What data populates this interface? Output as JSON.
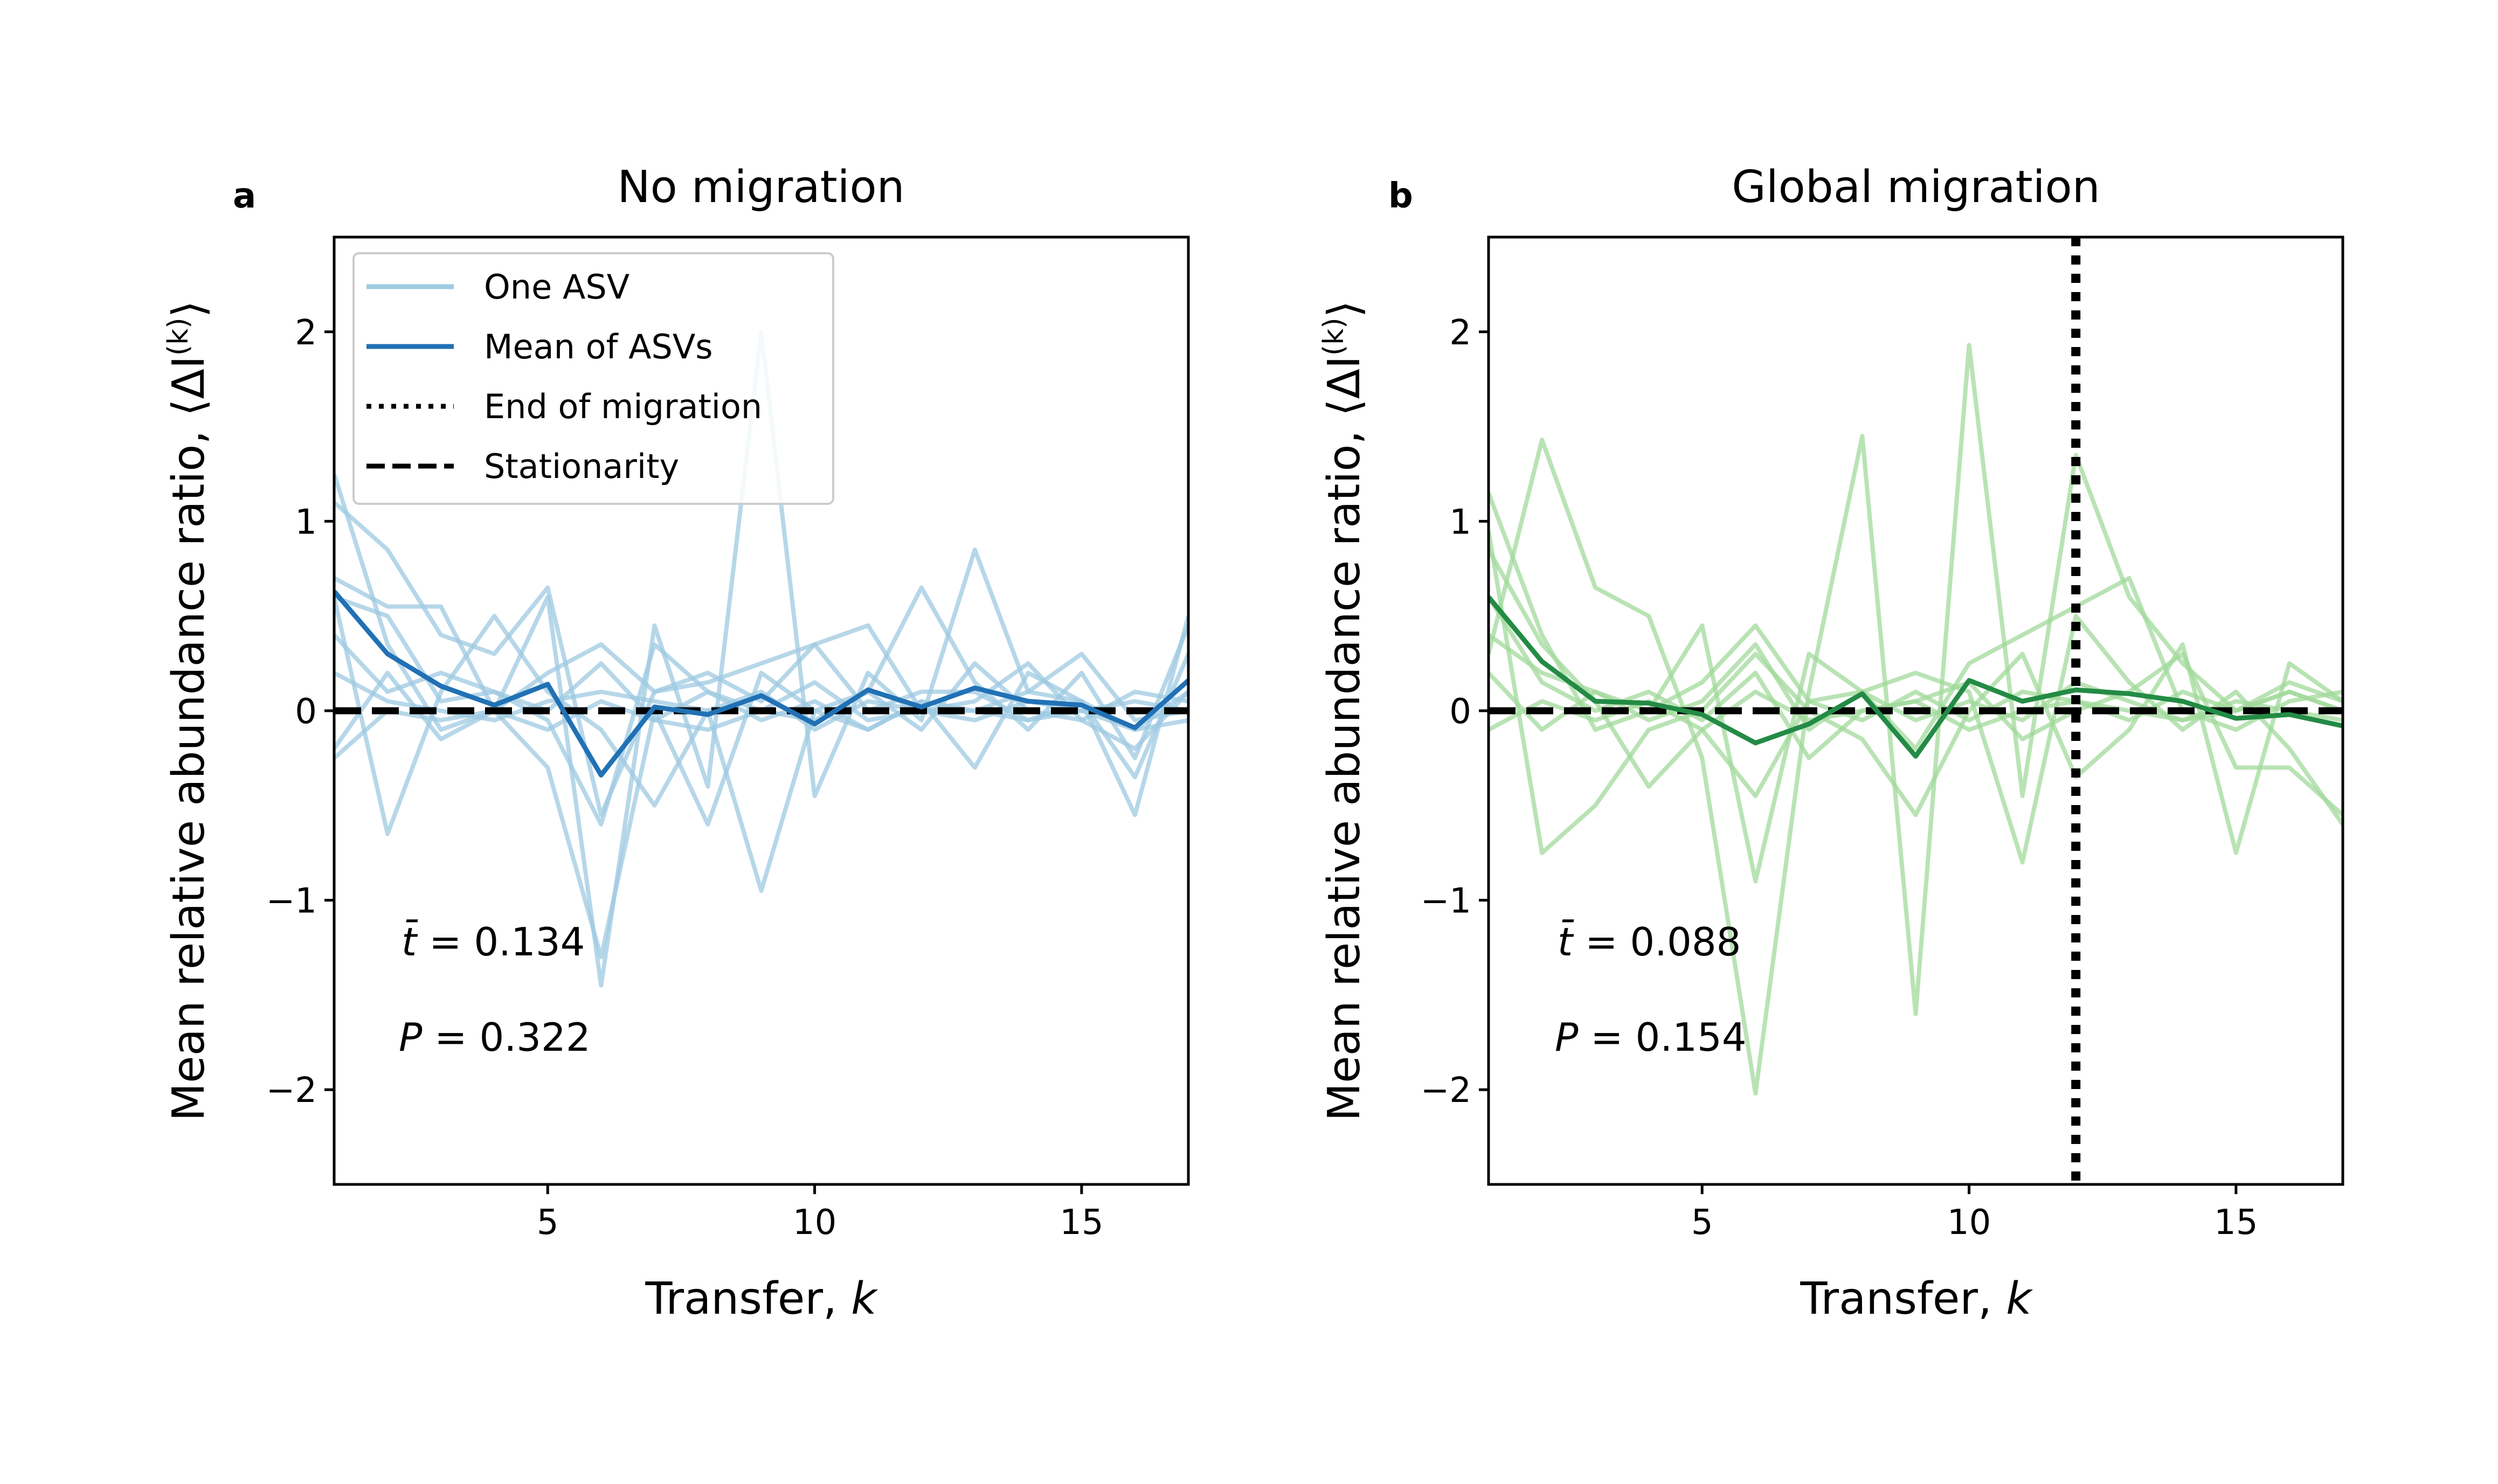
{
  "figure": {
    "panels": [
      {
        "letter": "a",
        "title": "No migration",
        "xlabel_text": "Transfer, ",
        "xlabel_var": "k",
        "ylabel_text": "Mean relative abundance ratio, ⟨ΔI",
        "ylabel_sup": "(k)",
        "ylabel_close": "⟩",
        "stat_t_var": "t̄",
        "stat_t_value": " = 0.134",
        "stat_p_var": "P",
        "stat_p_value": " = 0.322"
      },
      {
        "letter": "b",
        "title": "Global migration",
        "xlabel_text": "Transfer, ",
        "xlabel_var": "k",
        "ylabel_text": "Mean relative abundance ratio, ⟨ΔI",
        "ylabel_sup": "(k)",
        "ylabel_close": "⟩",
        "stat_t_var": "t̄",
        "stat_t_value": " = 0.088",
        "stat_p_var": "P",
        "stat_p_value": " = 0.154"
      }
    ],
    "legend": {
      "placement": "upper-left of panel a",
      "entries": [
        "One ASV",
        "Mean of ASVs",
        "End of migration",
        "Stationarity"
      ]
    },
    "colors": {
      "blue_light": "#9ecae1",
      "blue_dark": "#2171b5",
      "green_light": "#a1d99b",
      "green_dark": "#238b45",
      "black": "#000000"
    }
  },
  "chart_data": [
    {
      "type": "line",
      "title": "No migration",
      "xlabel": "Transfer, k",
      "ylabel": "Mean relative abundance ratio, ⟨ΔI^(k)⟩",
      "xlim": [
        1,
        17
      ],
      "ylim": [
        -2.5,
        2.5
      ],
      "xticks": [
        5,
        10,
        15
      ],
      "yticks": [
        -2,
        -1,
        0,
        1,
        2
      ],
      "x": [
        1,
        2,
        3,
        4,
        5,
        6,
        7,
        8,
        9,
        10,
        11,
        12,
        13,
        14,
        15,
        16,
        17
      ],
      "stationarity_y": 0,
      "series": [
        {
          "role": "asv",
          "values": [
            1.25,
            0.35,
            -0.1,
            0.0,
            0.6,
            -1.45,
            0.45,
            -0.4,
            2.0,
            -0.45,
            0.2,
            -0.05,
            0.85,
            0.1,
            0.05,
            -0.55,
            0.5
          ]
        },
        {
          "role": "asv",
          "values": [
            0.7,
            0.55,
            0.55,
            0.0,
            -0.3,
            -1.3,
            0.0,
            -0.6,
            0.2,
            0.0,
            -0.1,
            0.05,
            -0.3,
            0.2,
            0.05,
            -0.35,
            0.3
          ]
        },
        {
          "role": "asv",
          "values": [
            1.1,
            0.85,
            0.4,
            0.3,
            0.65,
            -0.55,
            0.1,
            0.2,
            0.05,
            0.35,
            0.0,
            0.1,
            0.1,
            -0.05,
            0.0,
            -0.1,
            0.1
          ]
        },
        {
          "role": "asv",
          "values": [
            0.6,
            -0.65,
            0.1,
            0.5,
            0.1,
            -0.1,
            -0.5,
            0.0,
            -0.95,
            0.0,
            0.1,
            -0.1,
            0.25,
            0.0,
            -0.05,
            0.1,
            0.05
          ]
        },
        {
          "role": "asv",
          "values": [
            -0.2,
            0.2,
            -0.15,
            0.0,
            0.2,
            0.35,
            0.1,
            0.15,
            0.25,
            0.35,
            0.45,
            0.0,
            0.0,
            0.1,
            0.3,
            -0.05,
            0.0
          ]
        },
        {
          "role": "asv",
          "values": [
            0.4,
            0.1,
            0.2,
            0.1,
            -0.05,
            -0.6,
            0.35,
            0.1,
            0.0,
            -0.05,
            0.1,
            0.65,
            0.15,
            -0.1,
            0.2,
            -0.25,
            0.45
          ]
        },
        {
          "role": "asv",
          "values": [
            0.6,
            0.5,
            0.05,
            0.1,
            0.0,
            0.25,
            -0.05,
            -0.1,
            0.0,
            0.15,
            -0.05,
            0.0,
            0.05,
            0.25,
            -0.05,
            -0.2,
            0.1
          ]
        },
        {
          "role": "asv",
          "values": [
            0.2,
            0.05,
            0.0,
            -0.05,
            0.05,
            0.1,
            0.05,
            0.0,
            0.1,
            -0.1,
            0.05,
            0.0,
            -0.05,
            0.05,
            0.0,
            0.05,
            0.0
          ]
        },
        {
          "role": "asv",
          "values": [
            -0.25,
            0.0,
            -0.05,
            0.0,
            -0.1,
            0.05,
            -0.05,
            0.1,
            -0.05,
            0.05,
            -0.1,
            0.05,
            0.0,
            -0.05,
            0.05,
            -0.1,
            -0.05
          ]
        },
        {
          "role": "mean",
          "name": "Mean of ASVs",
          "values": [
            0.63,
            0.3,
            0.13,
            0.03,
            0.14,
            -0.34,
            0.02,
            -0.02,
            0.08,
            -0.07,
            0.11,
            0.02,
            0.12,
            0.05,
            0.03,
            -0.09,
            0.16
          ]
        }
      ]
    },
    {
      "type": "line",
      "title": "Global migration",
      "xlabel": "Transfer, k",
      "ylabel": "Mean relative abundance ratio, ⟨ΔI^(k)⟩",
      "xlim": [
        1,
        17
      ],
      "ylim": [
        -2.5,
        2.5
      ],
      "xticks": [
        5,
        10,
        15
      ],
      "yticks": [
        -2,
        -1,
        0,
        1,
        2
      ],
      "x": [
        1,
        2,
        3,
        4,
        5,
        6,
        7,
        8,
        9,
        10,
        11,
        12,
        13,
        14,
        15,
        16,
        17
      ],
      "stationarity_y": 0,
      "end_of_migration_x": 12,
      "series": [
        {
          "role": "asv",
          "values": [
            0.3,
            1.43,
            0.65,
            0.5,
            -0.25,
            -2.02,
            0.1,
            1.45,
            -1.6,
            1.93,
            -0.45,
            1.35,
            0.6,
            0.25,
            0.0,
            0.1,
            0.0
          ]
        },
        {
          "role": "asv",
          "values": [
            1.15,
            0.4,
            -0.1,
            0.0,
            0.45,
            -0.9,
            0.3,
            0.1,
            0.2,
            0.1,
            -0.8,
            0.5,
            0.15,
            -0.1,
            0.1,
            -0.2,
            -0.6
          ]
        },
        {
          "role": "asv",
          "values": [
            0.95,
            -0.75,
            -0.5,
            -0.1,
            0.0,
            0.3,
            0.0,
            -0.15,
            -0.55,
            0.0,
            0.3,
            -0.35,
            -0.1,
            0.35,
            -0.75,
            0.25,
            0.05
          ]
        },
        {
          "role": "asv",
          "values": [
            0.85,
            0.35,
            0.05,
            -0.4,
            -0.1,
            -0.45,
            0.05,
            0.1,
            -0.2,
            0.25,
            0.4,
            0.55,
            0.7,
            0.0,
            -0.1,
            0.05,
            0.1
          ]
        },
        {
          "role": "asv",
          "values": [
            0.6,
            0.15,
            0.0,
            0.1,
            -0.05,
            0.2,
            -0.25,
            0.0,
            0.05,
            0.15,
            -0.15,
            0.0,
            0.1,
            0.3,
            -0.3,
            -0.3,
            -0.55
          ]
        },
        {
          "role": "asv",
          "values": [
            0.2,
            -0.1,
            0.1,
            0.0,
            0.15,
            0.45,
            0.05,
            -0.05,
            0.1,
            -0.05,
            0.1,
            0.05,
            -0.05,
            0.1,
            0.0,
            0.15,
            0.05
          ]
        },
        {
          "role": "asv",
          "values": [
            -0.1,
            0.05,
            -0.05,
            0.05,
            -0.1,
            0.1,
            -0.05,
            0.0,
            0.05,
            -0.1,
            0.0,
            0.05,
            0.0,
            -0.05,
            0.05,
            0.0,
            -0.05
          ]
        },
        {
          "role": "asv",
          "values": [
            0.4,
            0.2,
            0.1,
            -0.05,
            0.05,
            0.35,
            -0.1,
            0.1,
            -0.05,
            0.05,
            -0.05,
            0.15,
            0.05,
            -0.05,
            0.0,
            0.1,
            0.0
          ]
        },
        {
          "role": "mean",
          "name": "Mean of ASVs",
          "values": [
            0.6,
            0.26,
            0.05,
            0.04,
            -0.02,
            -0.17,
            -0.07,
            0.09,
            -0.24,
            0.16,
            0.05,
            0.11,
            0.09,
            0.05,
            -0.04,
            -0.02,
            -0.08
          ]
        }
      ]
    }
  ]
}
